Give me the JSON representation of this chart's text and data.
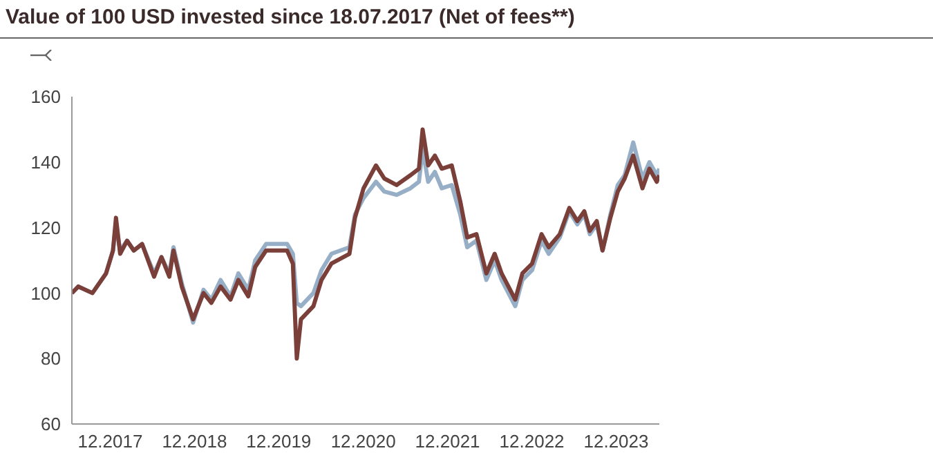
{
  "chart_data": {
    "type": "line",
    "title": "Value of 100 USD invested since 18.07.2017 (Net of fees**)",
    "x": [
      "2017-07-18",
      "2017-08-15",
      "2017-10-15",
      "2017-12-13",
      "2018-01-12",
      "2018-01-25",
      "2018-02-12",
      "2018-03-14",
      "2018-04-12",
      "2018-05-18",
      "2018-07-09",
      "2018-08-10",
      "2018-09-13",
      "2018-10-01",
      "2018-11-06",
      "2018-12-25",
      "2019-02-08",
      "2019-03-14",
      "2019-04-23",
      "2019-06-05",
      "2019-07-09",
      "2019-08-21",
      "2019-09-20",
      "2019-11-06",
      "2020-02-05",
      "2020-03-01",
      "2020-03-18",
      "2020-04-05",
      "2020-05-29",
      "2020-07-03",
      "2020-08-15",
      "2020-11-01",
      "2020-11-25",
      "2021-01-01",
      "2021-02-24",
      "2021-04-01",
      "2021-05-24",
      "2021-07-23",
      "2021-08-29",
      "2021-09-14",
      "2021-10-08",
      "2021-11-06",
      "2021-12-06",
      "2022-01-18",
      "2022-02-24",
      "2022-03-26",
      "2022-05-05",
      "2022-06-17",
      "2022-07-23",
      "2022-08-22",
      "2022-10-20",
      "2022-11-20",
      "2023-01-01",
      "2023-02-11",
      "2023-03-14",
      "2023-05-01",
      "2023-06-11",
      "2023-07-16",
      "2023-08-15",
      "2023-09-08",
      "2023-10-08",
      "2023-11-02",
      "2023-12-06",
      "2024-01-07",
      "2024-02-06",
      "2024-03-14",
      "2024-04-23",
      "2024-05-23",
      "2024-06-24",
      "2024-07-05"
    ],
    "series": [
      {
        "color": "#97afc6",
        "values": [
          100,
          102,
          100,
          106,
          113,
          121,
          113,
          116,
          113,
          115,
          106,
          111,
          106,
          114,
          103,
          91,
          101,
          98,
          104,
          99,
          106,
          101,
          110,
          115,
          115,
          112,
          97,
          96,
          100,
          107,
          112,
          114,
          124,
          129,
          134,
          131,
          130,
          132,
          134,
          144,
          134,
          137,
          132,
          133,
          124,
          114,
          116,
          104,
          110,
          104,
          96,
          104,
          107,
          116,
          112,
          117,
          125,
          121,
          124,
          118,
          121,
          113,
          124,
          133,
          136,
          146,
          135,
          140,
          136,
          138
        ]
      },
      {
        "color": "#7b3f3a",
        "values": [
          100,
          102,
          100,
          106,
          113,
          123,
          112,
          116,
          113,
          115,
          105,
          111,
          105,
          113,
          102,
          92,
          100,
          97,
          102,
          98,
          104,
          99,
          108,
          113,
          113,
          109,
          80,
          92,
          96,
          104,
          109,
          112,
          123,
          132,
          139,
          135,
          133,
          136,
          138,
          150,
          139,
          142,
          138,
          139,
          128,
          117,
          118,
          106,
          112,
          106,
          98,
          106,
          109,
          118,
          114,
          118,
          126,
          122,
          125,
          119,
          122,
          113,
          123,
          131,
          135,
          142,
          132,
          138,
          134,
          136
        ]
      }
    ],
    "xlim": [
      "2017-07-18",
      "2024-07-05"
    ],
    "xticks": [
      {
        "value": "2017-12-31",
        "label": "12.2017"
      },
      {
        "value": "2018-12-31",
        "label": "12.2018"
      },
      {
        "value": "2019-12-31",
        "label": "12.2019"
      },
      {
        "value": "2020-12-31",
        "label": "12.2020"
      },
      {
        "value": "2021-12-31",
        "label": "12.2021"
      },
      {
        "value": "2022-12-31",
        "label": "12.2022"
      },
      {
        "value": "2023-12-31",
        "label": "12.2023"
      }
    ],
    "ylim": [
      60,
      160
    ],
    "yticks": [
      60,
      80,
      100,
      120,
      140,
      160
    ]
  }
}
